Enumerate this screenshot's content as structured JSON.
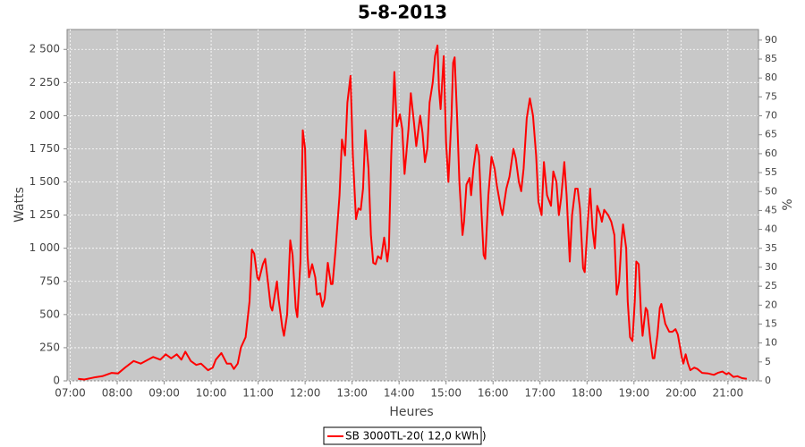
{
  "chart_data": {
    "type": "line",
    "title": "5-8-2013",
    "xlabel": "Heures",
    "ylabel": "Watts",
    "y2label": "%",
    "x": [
      "07:10",
      "07:18",
      "07:30",
      "07:41",
      "07:53",
      "08:01",
      "08:10",
      "08:21",
      "08:30",
      "08:46",
      "08:55",
      "09:02",
      "09:09",
      "09:16",
      "09:22",
      "09:27",
      "09:34",
      "09:41",
      "09:47",
      "09:56",
      "10:02",
      "10:06",
      "10:13",
      "10:20",
      "10:25",
      "10:29",
      "10:34",
      "10:38",
      "10:44",
      "10:49",
      "10:52",
      "10:55",
      "10:59",
      "11:01",
      "11:06",
      "11:09",
      "11:13",
      "11:16",
      "11:18",
      "11:24",
      "11:26",
      "11:31",
      "11:33",
      "11:37",
      "11:41",
      "11:44",
      "11:48",
      "11:50",
      "11:54",
      "11:57",
      "12:00",
      "12:03",
      "12:05",
      "12:09",
      "12:13",
      "12:15",
      "12:19",
      "12:22",
      "12:25",
      "12:29",
      "12:33",
      "12:35",
      "12:39",
      "12:44",
      "12:47",
      "12:51",
      "12:54",
      "12:58",
      "13:01",
      "13:05",
      "13:08",
      "13:11",
      "13:14",
      "13:17",
      "13:21",
      "13:24",
      "13:27",
      "13:30",
      "13:33",
      "13:37",
      "13:41",
      "13:45",
      "13:47",
      "13:50",
      "13:54",
      "13:57",
      "14:01",
      "14:04",
      "14:07",
      "14:12",
      "14:15",
      "14:19",
      "14:22",
      "14:27",
      "14:30",
      "14:33",
      "14:36",
      "14:39",
      "14:43",
      "14:46",
      "14:49",
      "14:51",
      "14:53",
      "14:57",
      "15:00",
      "15:03",
      "15:07",
      "15:09",
      "15:11",
      "15:14",
      "15:17",
      "15:21",
      "15:23",
      "15:26",
      "15:30",
      "15:32",
      "15:35",
      "15:39",
      "15:42",
      "15:45",
      "15:48",
      "15:50",
      "15:54",
      "15:58",
      "16:02",
      "16:05",
      "16:10",
      "16:12",
      "16:17",
      "16:21",
      "16:26",
      "16:29",
      "16:33",
      "16:36",
      "16:39",
      "16:43",
      "16:47",
      "16:51",
      "16:55",
      "16:58",
      "17:02",
      "17:05",
      "17:09",
      "17:14",
      "17:17",
      "17:21",
      "17:24",
      "17:27",
      "17:31",
      "17:34",
      "17:38",
      "17:41",
      "17:45",
      "17:48",
      "17:51",
      "17:55",
      "17:57",
      "18:01",
      "18:04",
      "18:07",
      "18:10",
      "18:13",
      "18:17",
      "18:19",
      "18:22",
      "18:27",
      "18:31",
      "18:35",
      "18:38",
      "18:41",
      "18:44",
      "18:46",
      "18:50",
      "18:52",
      "18:55",
      "18:58",
      "19:01",
      "19:03",
      "19:06",
      "19:09",
      "19:11",
      "19:15",
      "19:17",
      "19:21",
      "19:24",
      "19:26",
      "19:30",
      "19:33",
      "19:35",
      "19:40",
      "19:45",
      "19:49",
      "19:53",
      "19:56",
      "20:01",
      "20:03",
      "20:06",
      "20:09",
      "20:12",
      "20:17",
      "20:21",
      "20:27",
      "20:35",
      "20:42",
      "20:47",
      "20:53",
      "20:58",
      "21:01",
      "21:07",
      "21:12",
      "21:18",
      "21:24"
    ],
    "series": [
      {
        "name": "SB 3000TL-20( 12,0 kWh )",
        "color": "#ff0000",
        "values": [
          15,
          10,
          25,
          35,
          60,
          55,
          100,
          150,
          130,
          180,
          160,
          200,
          170,
          200,
          160,
          220,
          150,
          120,
          130,
          80,
          100,
          160,
          210,
          130,
          130,
          90,
          130,
          250,
          330,
          600,
          990,
          960,
          780,
          760,
          880,
          920,
          720,
          560,
          530,
          750,
          620,
          400,
          340,
          500,
          1060,
          950,
          550,
          480,
          900,
          1890,
          1750,
          950,
          780,
          880,
          780,
          650,
          660,
          560,
          620,
          890,
          730,
          730,
          1000,
          1400,
          1820,
          1700,
          2100,
          2300,
          1700,
          1220,
          1300,
          1290,
          1450,
          1890,
          1600,
          1100,
          890,
          880,
          940,
          920,
          1080,
          900,
          1000,
          1700,
          2330,
          1920,
          2010,
          1900,
          1560,
          1900,
          2170,
          1950,
          1770,
          2000,
          1870,
          1650,
          1750,
          2100,
          2250,
          2450,
          2530,
          2200,
          2050,
          2450,
          1800,
          1500,
          2000,
          2400,
          2440,
          2000,
          1500,
          1100,
          1200,
          1480,
          1530,
          1400,
          1600,
          1780,
          1700,
          1300,
          950,
          920,
          1400,
          1690,
          1600,
          1470,
          1300,
          1250,
          1450,
          1540,
          1750,
          1680,
          1500,
          1430,
          1600,
          1980,
          2130,
          2000,
          1700,
          1350,
          1250,
          1650,
          1400,
          1320,
          1580,
          1500,
          1250,
          1380,
          1650,
          1400,
          900,
          1250,
          1450,
          1450,
          1300,
          850,
          820,
          1200,
          1450,
          1150,
          1000,
          1320,
          1250,
          1200,
          1290,
          1250,
          1200,
          1100,
          650,
          750,
          1050,
          1180,
          1000,
          600,
          330,
          300,
          600,
          900,
          880,
          500,
          340,
          550,
          530,
          300,
          170,
          170,
          350,
          550,
          580,
          430,
          370,
          370,
          390,
          350,
          180,
          130,
          200,
          130,
          80,
          100,
          90,
          60,
          55,
          45,
          60,
          70,
          50,
          60,
          30,
          35,
          20,
          15
        ]
      }
    ],
    "xlim": [
      "06:56",
      "21:39"
    ],
    "xticks": [
      "07:00",
      "08:00",
      "09:00",
      "10:00",
      "11:00",
      "12:00",
      "13:00",
      "14:00",
      "15:00",
      "16:00",
      "17:00",
      "18:00",
      "19:00",
      "20:00",
      "21:00"
    ],
    "ylim": [
      0,
      2650
    ],
    "yticks": [
      0,
      250,
      500,
      750,
      {
        "value": 1000,
        "label": "1 000"
      },
      {
        "value": 1250,
        "label": "1 250"
      },
      {
        "value": 1500,
        "label": "1 500"
      },
      {
        "value": 1750,
        "label": "1 750"
      },
      {
        "value": 2000,
        "label": "2 000"
      },
      {
        "value": 2250,
        "label": "2 250"
      },
      {
        "value": 2500,
        "label": "2 500"
      }
    ],
    "y2lim": [
      0,
      92.8
    ],
    "y2ticks": [
      0,
      5,
      10,
      15,
      20,
      25,
      30,
      35,
      40,
      45,
      50,
      55,
      60,
      65,
      70,
      75,
      80,
      85,
      90
    ],
    "grid": true
  }
}
